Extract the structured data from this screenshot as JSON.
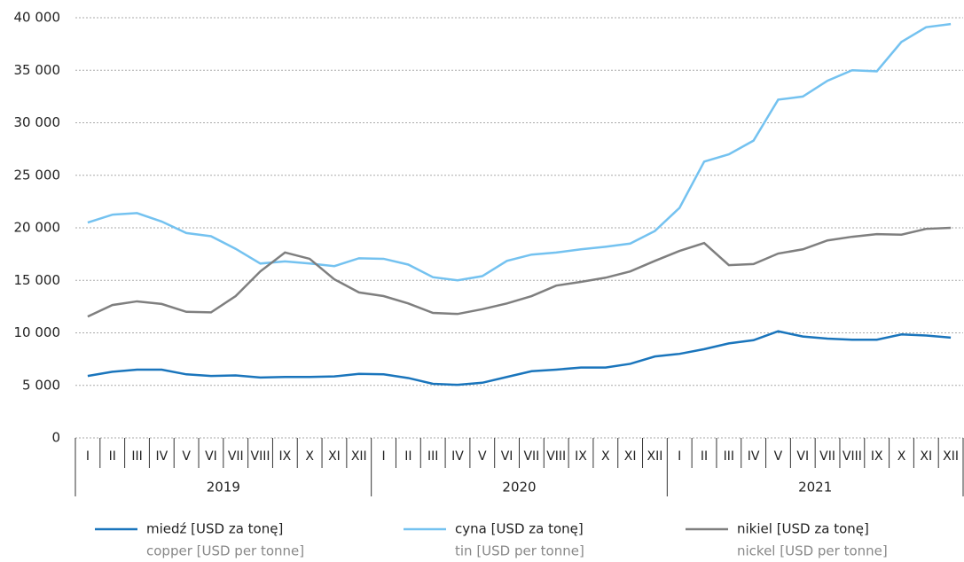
{
  "chart_data": {
    "type": "line",
    "categories": [
      "I",
      "II",
      "III",
      "IV",
      "V",
      "VI",
      "VII",
      "VIII",
      "IX",
      "X",
      "XI",
      "XII",
      "I",
      "II",
      "III",
      "IV",
      "V",
      "VI",
      "VII",
      "VIII",
      "IX",
      "X",
      "XI",
      "XII",
      "I",
      "II",
      "III",
      "IV",
      "V",
      "VI",
      "VII",
      "VIII",
      "IX",
      "X",
      "XI",
      "XII"
    ],
    "years": [
      "2019",
      "2020",
      "2021"
    ],
    "series": [
      {
        "name": "miedź [USD za tonę]",
        "name_en": "copper [USD per tonne]",
        "color": "#1a75bc",
        "values": [
          5900,
          6300,
          6500,
          6500,
          6050,
          5900,
          5950,
          5750,
          5800,
          5800,
          5850,
          6100,
          6050,
          5700,
          5150,
          5050,
          5250,
          5800,
          6350,
          6500,
          6700,
          6700,
          7050,
          7750,
          8000,
          8450,
          9000,
          9300,
          10150,
          9650,
          9450,
          9350,
          9350,
          9850,
          9750,
          9550
        ]
      },
      {
        "name": "cyna [USD za tonę]",
        "name_en": "tin [USD per tonne]",
        "color": "#74c2f0",
        "values": [
          20500,
          21250,
          21400,
          20600,
          19500,
          19200,
          18000,
          16600,
          16800,
          16600,
          16350,
          17100,
          17050,
          16500,
          15300,
          15000,
          15400,
          16850,
          17450,
          17650,
          17950,
          18200,
          18500,
          19700,
          21900,
          26300,
          27000,
          28300,
          32200,
          32500,
          34000,
          35000,
          34900,
          37700,
          39100,
          39400
        ]
      },
      {
        "name": "nikiel [USD za tonę]",
        "name_en": "nickel [USD per tonne]",
        "color": "#7f7f7f",
        "values": [
          11550,
          12650,
          13000,
          12750,
          12000,
          11950,
          13500,
          15850,
          17650,
          17050,
          15100,
          13850,
          13500,
          12800,
          11900,
          11800,
          12250,
          12800,
          13500,
          14500,
          14850,
          15250,
          15850,
          16850,
          17800,
          18550,
          16450,
          16550,
          17550,
          17950,
          18800,
          19150,
          19400,
          19350,
          19900,
          20000
        ]
      }
    ],
    "ylim": [
      0,
      40000
    ],
    "yticks": [
      0,
      {
        "value": 5000,
        "label": "5 000"
      },
      {
        "value": 10000,
        "label": "10 000"
      },
      {
        "value": 15000,
        "label": "15 000"
      },
      {
        "value": 20000,
        "label": "20 000"
      },
      {
        "value": 25000,
        "label": "25 000"
      },
      {
        "value": 30000,
        "label": "30 000"
      },
      {
        "value": 35000,
        "label": "35 000"
      },
      {
        "value": 40000,
        "label": "40 000"
      }
    ],
    "grid": true
  }
}
